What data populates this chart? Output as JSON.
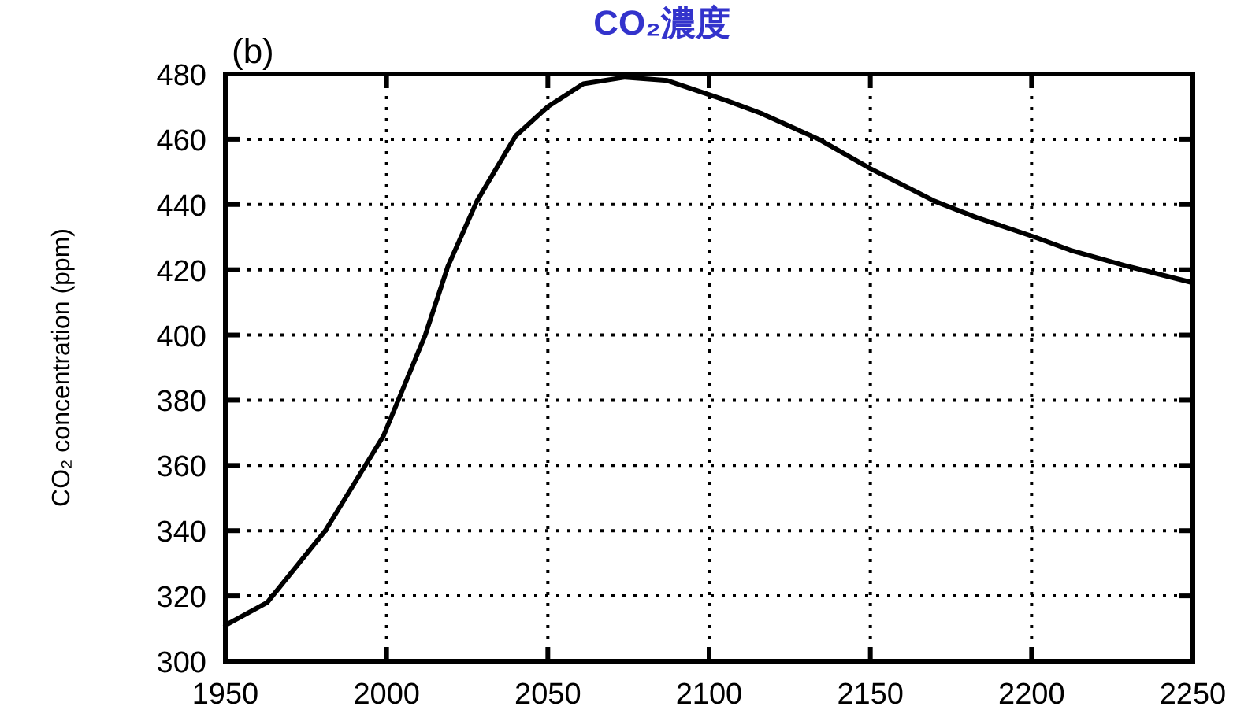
{
  "chart_data": {
    "type": "line",
    "title": "CO₂濃度",
    "ylabel": "CO₂ concentration (ppm)",
    "annotations": [
      "(b)"
    ],
    "x": [
      1950,
      1963,
      1981,
      1999,
      2012,
      2019,
      2028,
      2040,
      2050,
      2061,
      2074,
      2087,
      2105,
      2116,
      2134,
      2150,
      2170,
      2183,
      2201,
      2212,
      2230,
      2250
    ],
    "series": [
      {
        "color": "#000000",
        "values": [
          311,
          318,
          340,
          369,
          400,
          421,
          441,
          461,
          470,
          477,
          479,
          478,
          472,
          468,
          460,
          451,
          441,
          436,
          430,
          426,
          421,
          416
        ]
      }
    ],
    "xlim": [
      1950,
      2250
    ],
    "xticks": [
      1950,
      2000,
      2050,
      2100,
      2150,
      2200,
      2250
    ],
    "ylim": [
      300,
      480
    ],
    "yticks": [
      300,
      320,
      340,
      360,
      380,
      400,
      420,
      440,
      460,
      480
    ],
    "grid": true,
    "marker": "none",
    "line_style": "solid"
  }
}
